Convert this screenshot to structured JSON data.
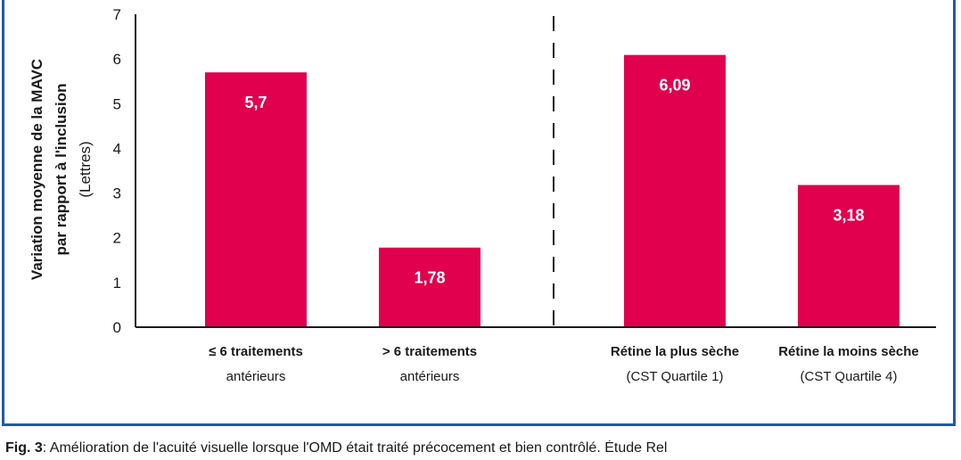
{
  "chart_data": {
    "type": "bar",
    "ylabel_lines": [
      "Variation moyenne de la MAVC",
      "par rapport à l'inclusion",
      "(Lettres)"
    ],
    "ylim": [
      0,
      7
    ],
    "yticks": [
      0,
      1,
      2,
      3,
      4,
      5,
      6,
      7
    ],
    "grid": false,
    "legend": "none",
    "bar_color": "#e0004d",
    "divider": "dashed vertical line between the second and third bars",
    "categories": [
      {
        "line1": "≤ 6 traitements",
        "line2": "antérieurs"
      },
      {
        "line1": "> 6 traitements",
        "line2": "antérieurs"
      },
      {
        "line1": "Rétine la plus sèche",
        "line2": "(CST Quartile 1)"
      },
      {
        "line1": "Rétine la moins sèche",
        "line2": "(CST Quartile 4)"
      }
    ],
    "values": [
      5.7,
      1.78,
      6.09,
      3.18
    ],
    "value_labels": [
      "5,7",
      "1,78",
      "6,09",
      "3,18"
    ]
  },
  "caption": {
    "fig_label": "Fig. 3",
    "text": ": Amélioration de l'acuité visuelle lorsque l'OMD était traité précocement et bien contrôlé. Étude Rel"
  },
  "colors": {
    "frame": "#1f5aa6",
    "axis": "#1a1a1a"
  }
}
